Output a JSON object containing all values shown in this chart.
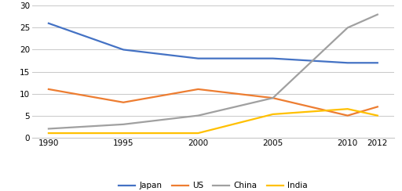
{
  "years": [
    1990,
    1995,
    2000,
    2005,
    2010,
    2012
  ],
  "japan": [
    26,
    20,
    18,
    18,
    17,
    17
  ],
  "us": [
    11,
    8,
    11,
    9,
    5,
    7
  ],
  "china": [
    2,
    3,
    5,
    9,
    25,
    28
  ],
  "india": [
    1,
    1,
    1,
    5.3,
    6.5,
    5
  ],
  "colors": {
    "japan": "#4472C4",
    "us": "#ED7D31",
    "china": "#A0A0A0",
    "india": "#FFC000"
  },
  "legend_labels": [
    "Japan",
    "US",
    "China",
    "India"
  ],
  "ylim": [
    0,
    30
  ],
  "yticks": [
    0,
    5,
    10,
    15,
    20,
    25,
    30
  ],
  "xticks": [
    1990,
    1995,
    2000,
    2005,
    2010,
    2012
  ],
  "background_color": "#ffffff",
  "grid_color": "#c8c8c8",
  "linewidth": 1.6,
  "tick_labelsize": 7.5,
  "legend_fontsize": 7.5
}
